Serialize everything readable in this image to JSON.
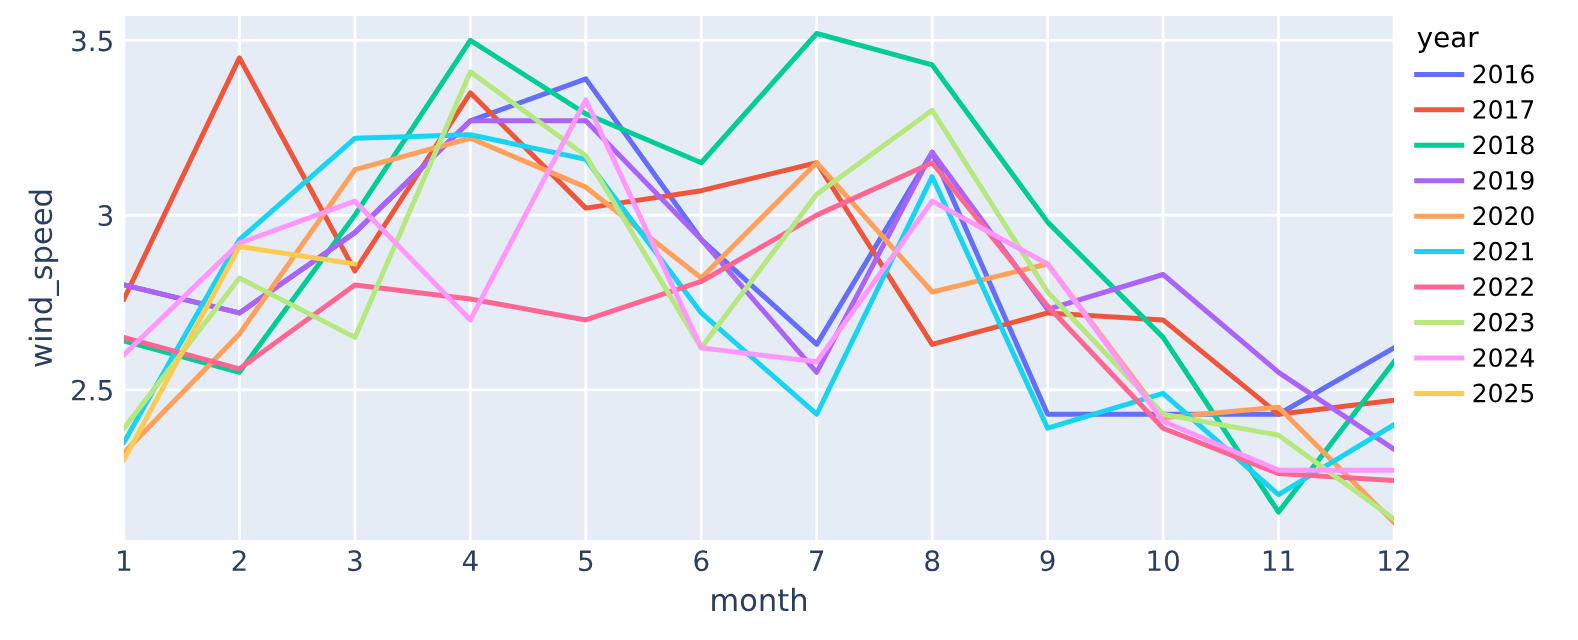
{
  "chart_data": {
    "type": "line",
    "xlabel": "month",
    "ylabel": "wind_speed",
    "legend_title": "year",
    "legend": "right",
    "x": [
      1,
      2,
      3,
      4,
      5,
      6,
      7,
      8,
      9,
      10,
      11,
      12
    ],
    "xlim": [
      1,
      12
    ],
    "xticks": [
      1,
      2,
      3,
      4,
      5,
      6,
      7,
      8,
      9,
      10,
      11,
      12
    ],
    "ylim": [
      2.07,
      3.57
    ],
    "yticks": [
      2.5,
      3,
      3.5
    ],
    "grid": true,
    "series": [
      {
        "name": "2016",
        "color": "#636efa",
        "values": [
          2.8,
          2.72,
          2.95,
          3.27,
          3.39,
          2.93,
          2.63,
          3.18,
          2.43,
          2.43,
          2.43,
          2.62
        ]
      },
      {
        "name": "2017",
        "color": "#ef553b",
        "values": [
          2.76,
          3.45,
          2.84,
          3.35,
          3.02,
          3.07,
          3.15,
          2.63,
          2.72,
          2.7,
          2.43,
          2.47
        ]
      },
      {
        "name": "2018",
        "color": "#00cc96",
        "values": [
          2.64,
          2.55,
          3.0,
          3.5,
          3.29,
          3.15,
          3.52,
          3.43,
          2.98,
          2.65,
          2.15,
          2.58
        ]
      },
      {
        "name": "2019",
        "color": "#ab63fa",
        "values": [
          2.8,
          2.72,
          2.95,
          3.27,
          3.27,
          2.93,
          2.55,
          3.18,
          2.73,
          2.83,
          2.55,
          2.33
        ]
      },
      {
        "name": "2020",
        "color": "#ffa15a",
        "values": [
          2.32,
          2.66,
          3.13,
          3.22,
          3.08,
          2.82,
          3.15,
          2.78,
          2.86,
          2.42,
          2.45,
          2.12
        ]
      },
      {
        "name": "2021",
        "color": "#19d3f3",
        "values": [
          2.35,
          2.93,
          3.22,
          3.23,
          3.16,
          2.72,
          2.43,
          3.11,
          2.39,
          2.49,
          2.2,
          2.4
        ]
      },
      {
        "name": "2022",
        "color": "#ff6692",
        "values": [
          2.65,
          2.56,
          2.8,
          2.76,
          2.7,
          2.81,
          3.0,
          3.15,
          2.74,
          2.39,
          2.26,
          2.24
        ]
      },
      {
        "name": "2023",
        "color": "#b6e880",
        "values": [
          2.39,
          2.82,
          2.65,
          3.41,
          3.17,
          2.62,
          3.06,
          3.3,
          2.78,
          2.43,
          2.37,
          2.13
        ]
      },
      {
        "name": "2024",
        "color": "#ff97ff",
        "values": [
          2.6,
          2.92,
          3.04,
          2.7,
          3.33,
          2.62,
          2.58,
          3.04,
          2.86,
          2.41,
          2.27,
          2.27
        ]
      },
      {
        "name": "2025",
        "color": "#fecb52",
        "values": [
          2.3,
          2.91,
          2.86,
          null,
          null,
          null,
          null,
          null,
          null,
          null,
          null,
          null
        ]
      }
    ]
  }
}
